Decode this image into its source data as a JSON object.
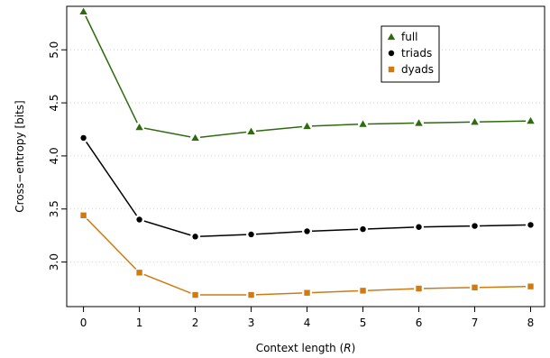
{
  "chart_data": {
    "type": "line",
    "x": [
      0,
      1,
      2,
      3,
      4,
      5,
      6,
      7,
      8
    ],
    "xticks": [
      0,
      1,
      2,
      3,
      4,
      5,
      6,
      7,
      8
    ],
    "yticks": [
      "3.0",
      "3.5",
      "4.0",
      "4.5",
      "5.0"
    ],
    "xlim": [
      -0.3,
      8.25
    ],
    "ylim": [
      2.58,
      5.41
    ],
    "xlabel_prefix": "Context length (",
    "xlabel_var": "R",
    "xlabel_suffix": ")",
    "ylabel": "Cross−entropy [bits]",
    "grid": "horizontal-dotted",
    "legend_position": "top-right",
    "series": [
      {
        "name": "full",
        "color": "#2e6b0f",
        "marker": "triangle",
        "values": [
          5.36,
          4.27,
          4.17,
          4.23,
          4.28,
          4.3,
          4.31,
          4.32,
          4.33
        ]
      },
      {
        "name": "triads",
        "color": "#000000",
        "marker": "circle",
        "values": [
          4.17,
          3.4,
          3.24,
          3.26,
          3.29,
          3.31,
          3.33,
          3.34,
          3.35
        ]
      },
      {
        "name": "dyads",
        "color": "#d07a10",
        "marker": "square",
        "values": [
          3.44,
          2.9,
          2.69,
          2.69,
          2.71,
          2.73,
          2.75,
          2.76,
          2.77
        ]
      }
    ]
  }
}
